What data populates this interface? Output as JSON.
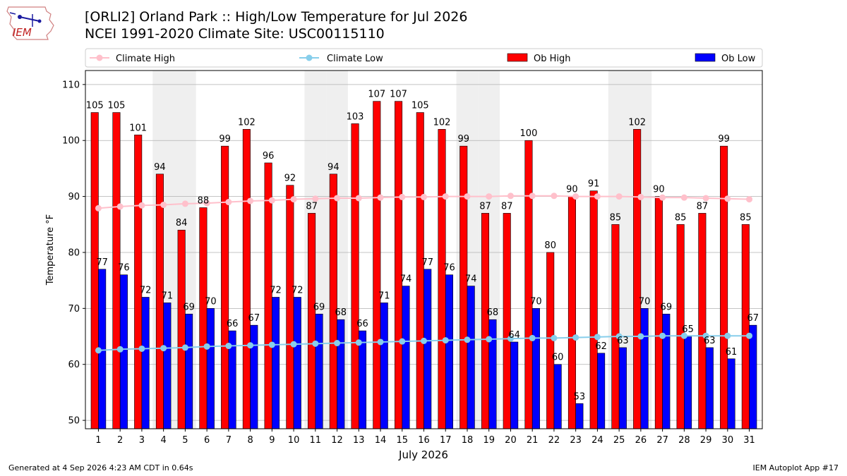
{
  "header": {
    "logo_text": "IEM",
    "title": "[ORLI2] Orland Park :: High/Low Temperature for Jul 2026",
    "subtitle": "NCEI 1991-2020 Climate Site: USC00115110"
  },
  "footer": {
    "generated": "Generated at 4 Sep 2026 4:23 AM CDT in 0.64s",
    "app": "IEM Autoplot App #17"
  },
  "colors": {
    "ob_high": "#ff0000",
    "ob_low": "#0000ff",
    "climate_high": "#ffc0cb",
    "climate_low": "#87ceeb",
    "weekend_shade": "#efefef"
  },
  "chart_data": {
    "type": "bar",
    "xlabel": "July 2026",
    "ylabel": "Temperature °F",
    "ylim": [
      48.5,
      112.5
    ],
    "yticks": [
      50,
      60,
      70,
      80,
      90,
      100,
      110
    ],
    "grid": true,
    "legend_placement": "top",
    "categories": [
      "1",
      "2",
      "3",
      "4",
      "5",
      "6",
      "7",
      "8",
      "9",
      "10",
      "11",
      "12",
      "13",
      "14",
      "15",
      "16",
      "17",
      "18",
      "19",
      "20",
      "21",
      "22",
      "23",
      "24",
      "25",
      "26",
      "27",
      "28",
      "29",
      "30",
      "31"
    ],
    "weekend_days": [
      4,
      5,
      11,
      12,
      18,
      19,
      25,
      26
    ],
    "series": [
      {
        "name": "Ob High",
        "kind": "bar",
        "values": [
          105,
          105,
          101,
          94,
          84,
          88,
          99,
          102,
          96,
          92,
          87,
          94,
          103,
          107,
          107,
          105,
          102,
          99,
          87,
          87,
          100,
          80,
          90,
          91,
          85,
          102,
          90,
          85,
          87,
          99,
          85
        ]
      },
      {
        "name": "Ob Low",
        "kind": "bar",
        "values": [
          77,
          76,
          72,
          71,
          69,
          70,
          66,
          67,
          72,
          72,
          69,
          68,
          66,
          71,
          74,
          77,
          76,
          74,
          68,
          64,
          70,
          60,
          53,
          62,
          63,
          70,
          69,
          65,
          63,
          61,
          67
        ]
      },
      {
        "name": "Climate High",
        "kind": "line",
        "values": [
          87.9,
          88.2,
          88.4,
          88.5,
          88.7,
          88.8,
          89.0,
          89.2,
          89.3,
          89.5,
          89.6,
          89.7,
          89.7,
          89.8,
          89.9,
          89.9,
          90.0,
          90.0,
          90.0,
          90.1,
          90.1,
          90.1,
          90.0,
          90.0,
          90.0,
          89.9,
          89.8,
          89.8,
          89.7,
          89.6,
          89.5
        ]
      },
      {
        "name": "Climate Low",
        "kind": "line",
        "values": [
          62.5,
          62.7,
          62.8,
          62.9,
          63.0,
          63.2,
          63.3,
          63.4,
          63.5,
          63.6,
          63.7,
          63.8,
          63.9,
          64.0,
          64.1,
          64.2,
          64.3,
          64.4,
          64.5,
          64.6,
          64.7,
          64.7,
          64.8,
          64.9,
          65.0,
          65.0,
          65.1,
          65.1,
          65.1,
          65.1,
          65.1
        ]
      }
    ]
  }
}
